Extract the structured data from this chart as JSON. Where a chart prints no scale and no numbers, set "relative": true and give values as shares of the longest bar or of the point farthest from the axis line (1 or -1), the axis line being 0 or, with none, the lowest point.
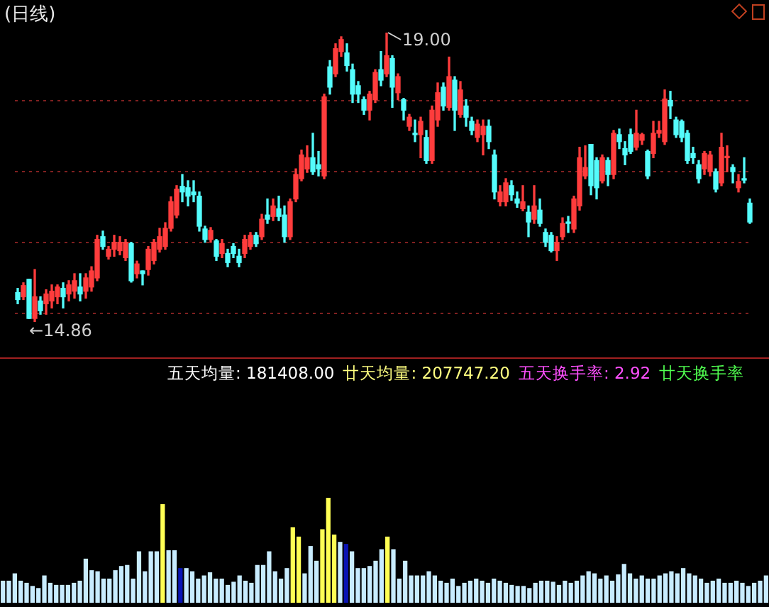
{
  "chart_data": [
    {
      "type": "candlestick",
      "title": "(日线)",
      "grid": "y",
      "tick_labels": false,
      "yticks": [
        {
          "value": 14.98,
          "label": null
        },
        {
          "value": 16.0,
          "label": null
        },
        {
          "value": 17.01,
          "label": null
        },
        {
          "value": 18.03,
          "label": null
        }
      ],
      "categories": [
        null,
        null,
        null,
        null,
        null,
        null,
        null,
        null,
        null,
        null,
        null,
        null,
        null,
        null,
        null,
        null,
        null,
        null,
        null,
        null,
        null,
        null,
        null,
        null,
        null,
        null,
        null,
        null,
        null,
        null,
        null,
        null,
        null,
        null,
        null,
        null,
        null,
        null,
        null,
        null,
        null,
        null,
        null,
        null,
        null,
        null,
        null,
        null,
        null,
        null,
        null,
        null,
        null,
        null,
        null,
        null,
        null,
        null,
        null,
        null,
        null,
        null,
        null,
        null,
        null,
        null,
        null,
        null,
        null,
        null,
        null,
        null,
        null,
        null,
        null,
        null,
        null,
        null,
        null,
        null,
        null,
        null,
        null,
        null,
        null,
        null,
        null,
        null,
        null,
        null,
        null,
        null,
        null,
        null,
        null,
        null,
        null,
        null,
        null,
        null,
        null,
        null,
        null,
        null,
        null,
        null,
        null,
        null,
        null,
        null,
        null,
        null,
        null,
        null,
        null,
        null,
        null,
        null,
        null,
        null,
        null,
        null,
        null,
        null,
        null,
        null,
        null,
        null,
        null,
        null
      ],
      "ohlc": [
        [
          15.28,
          15.34,
          15.12,
          15.18
        ],
        [
          15.22,
          15.42,
          15.18,
          15.38
        ],
        [
          15.47,
          15.47,
          14.91,
          14.91
        ],
        [
          14.91,
          15.61,
          14.86,
          15.22
        ],
        [
          15.16,
          15.22,
          14.97,
          15.02
        ],
        [
          15.12,
          15.32,
          14.97,
          15.26
        ],
        [
          15.16,
          15.39,
          15.06,
          15.3
        ],
        [
          15.22,
          15.39,
          15.12,
          15.36
        ],
        [
          15.34,
          15.42,
          15.06,
          15.22
        ],
        [
          15.26,
          15.45,
          15.16,
          15.39
        ],
        [
          15.3,
          15.55,
          15.2,
          15.45
        ],
        [
          15.36,
          15.55,
          15.16,
          15.26
        ],
        [
          15.3,
          15.55,
          15.2,
          15.49
        ],
        [
          15.36,
          15.65,
          15.3,
          15.59
        ],
        [
          15.49,
          16.1,
          15.45,
          16.04
        ],
        [
          16.08,
          16.16,
          15.9,
          15.94
        ],
        [
          15.8,
          15.94,
          15.76,
          15.9
        ],
        [
          15.9,
          16.1,
          15.8,
          16.0
        ],
        [
          15.88,
          16.08,
          15.82,
          16.0
        ],
        [
          15.78,
          16.04,
          15.74,
          16.0
        ],
        [
          15.98,
          16.0,
          15.43,
          15.45
        ],
        [
          15.55,
          15.73,
          15.49,
          15.69
        ],
        [
          15.59,
          15.59,
          15.39,
          15.55
        ],
        [
          15.61,
          15.94,
          15.53,
          15.9
        ],
        [
          15.74,
          16.04,
          15.69,
          16.0
        ],
        [
          15.9,
          16.2,
          15.86,
          16.08
        ],
        [
          15.94,
          16.28,
          15.9,
          16.2
        ],
        [
          16.2,
          16.65,
          16.16,
          16.58
        ],
        [
          16.39,
          16.81,
          16.35,
          16.76
        ],
        [
          16.8,
          16.97,
          16.58,
          16.72
        ],
        [
          16.78,
          16.88,
          16.52,
          16.66
        ],
        [
          16.72,
          16.88,
          16.58,
          16.68
        ],
        [
          16.66,
          16.72,
          16.16,
          16.23
        ],
        [
          16.19,
          16.23,
          16.0,
          16.04
        ],
        [
          16.04,
          16.21,
          16.0,
          16.17
        ],
        [
          16.02,
          16.04,
          15.74,
          15.8
        ],
        [
          15.84,
          16.04,
          15.78,
          15.98
        ],
        [
          15.84,
          15.9,
          15.65,
          15.71
        ],
        [
          15.94,
          15.98,
          15.78,
          15.84
        ],
        [
          15.8,
          15.9,
          15.65,
          15.71
        ],
        [
          15.84,
          16.1,
          15.78,
          16.04
        ],
        [
          15.94,
          16.14,
          15.9,
          16.1
        ],
        [
          16.1,
          16.14,
          15.94,
          15.98
        ],
        [
          16.08,
          16.4,
          16.04,
          16.33
        ],
        [
          16.39,
          16.62,
          16.27,
          16.33
        ],
        [
          16.37,
          16.62,
          16.31,
          16.52
        ],
        [
          16.48,
          16.66,
          16.31,
          16.37
        ],
        [
          16.39,
          16.52,
          16.0,
          16.08
        ],
        [
          16.08,
          16.62,
          16.04,
          16.58
        ],
        [
          16.62,
          17.05,
          16.58,
          16.97
        ],
        [
          16.91,
          17.32,
          16.88,
          17.25
        ],
        [
          17.05,
          17.38,
          17.0,
          17.21
        ],
        [
          17.21,
          17.56,
          16.97,
          17.01
        ],
        [
          17.11,
          17.3,
          16.95,
          17.05
        ],
        [
          16.95,
          18.12,
          16.91,
          18.08
        ],
        [
          18.51,
          18.6,
          18.12,
          18.22
        ],
        [
          18.41,
          18.84,
          18.37,
          18.77
        ],
        [
          18.73,
          18.94,
          18.66,
          18.9
        ],
        [
          18.71,
          18.84,
          18.45,
          18.53
        ],
        [
          18.47,
          18.55,
          18.0,
          18.12
        ],
        [
          18.24,
          18.3,
          18.0,
          18.12
        ],
        [
          18.04,
          18.08,
          17.83,
          17.89
        ],
        [
          17.89,
          18.16,
          17.75,
          18.12
        ],
        [
          18.04,
          18.47,
          18.0,
          18.43
        ],
        [
          18.47,
          18.73,
          18.24,
          18.32
        ],
        [
          18.41,
          19.0,
          18.37,
          18.67
        ],
        [
          18.63,
          18.67,
          17.93,
          18.22
        ],
        [
          18.14,
          18.41,
          18.04,
          18.37
        ],
        [
          18.04,
          18.06,
          17.75,
          17.89
        ],
        [
          17.66,
          17.83,
          17.6,
          17.79
        ],
        [
          17.56,
          17.75,
          17.44,
          17.54
        ],
        [
          17.54,
          17.79,
          17.21,
          17.73
        ],
        [
          17.5,
          17.6,
          17.13,
          17.17
        ],
        [
          17.17,
          17.95,
          17.13,
          17.89
        ],
        [
          17.75,
          18.28,
          17.66,
          18.14
        ],
        [
          18.22,
          18.28,
          17.89,
          17.95
        ],
        [
          17.93,
          18.65,
          17.89,
          18.37
        ],
        [
          18.32,
          18.37,
          17.6,
          17.89
        ],
        [
          17.83,
          18.3,
          17.79,
          18.18
        ],
        [
          17.95,
          18.04,
          17.66,
          17.79
        ],
        [
          17.73,
          17.79,
          17.54,
          17.6
        ],
        [
          17.5,
          17.75,
          17.44,
          17.69
        ],
        [
          17.54,
          17.75,
          17.25,
          17.66
        ],
        [
          17.66,
          17.75,
          17.34,
          17.44
        ],
        [
          17.25,
          17.32,
          16.62,
          16.72
        ],
        [
          16.58,
          16.81,
          16.52,
          16.72
        ],
        [
          16.58,
          16.91,
          16.52,
          16.85
        ],
        [
          16.81,
          16.88,
          16.6,
          16.68
        ],
        [
          16.62,
          16.72,
          16.5,
          16.56
        ],
        [
          16.48,
          16.81,
          16.45,
          16.58
        ],
        [
          16.43,
          16.52,
          16.08,
          16.29
        ],
        [
          16.33,
          16.81,
          16.27,
          16.52
        ],
        [
          16.46,
          16.62,
          16.23,
          16.27
        ],
        [
          16.14,
          16.19,
          15.94,
          16.0
        ],
        [
          16.1,
          16.14,
          15.86,
          15.88
        ],
        [
          15.88,
          16.08,
          15.74,
          16.0
        ],
        [
          16.08,
          16.35,
          16.04,
          16.27
        ],
        [
          16.29,
          16.37,
          16.14,
          16.27
        ],
        [
          16.19,
          16.66,
          16.14,
          16.62
        ],
        [
          16.52,
          17.36,
          16.46,
          17.21
        ],
        [
          16.95,
          17.38,
          16.91,
          17.07
        ],
        [
          17.4,
          17.4,
          16.68,
          16.81
        ],
        [
          17.17,
          17.21,
          16.62,
          16.78
        ],
        [
          16.88,
          17.25,
          16.85,
          17.21
        ],
        [
          17.17,
          17.21,
          16.81,
          16.97
        ],
        [
          16.97,
          17.6,
          16.91,
          17.56
        ],
        [
          17.54,
          17.62,
          17.34,
          17.44
        ],
        [
          17.34,
          17.44,
          17.11,
          17.25
        ],
        [
          17.54,
          17.62,
          17.27,
          17.3
        ],
        [
          17.36,
          17.89,
          17.32,
          17.56
        ],
        [
          17.46,
          17.56,
          17.4,
          17.54
        ],
        [
          17.3,
          17.32,
          16.91,
          16.95
        ],
        [
          17.27,
          17.73,
          17.21,
          17.56
        ],
        [
          17.56,
          17.73,
          17.5,
          17.6
        ],
        [
          17.44,
          18.18,
          17.4,
          18.05
        ],
        [
          18.03,
          18.16,
          17.77,
          17.95
        ],
        [
          17.75,
          17.79,
          17.5,
          17.54
        ],
        [
          17.73,
          17.75,
          17.44,
          17.5
        ],
        [
          17.56,
          17.6,
          17.13,
          17.17
        ],
        [
          17.27,
          17.36,
          17.13,
          17.21
        ],
        [
          17.11,
          17.17,
          16.85,
          16.91
        ],
        [
          17.05,
          17.3,
          16.97,
          17.27
        ],
        [
          17.01,
          17.3,
          16.95,
          17.25
        ],
        [
          17.01,
          17.05,
          16.72,
          16.76
        ],
        [
          16.85,
          17.56,
          16.81,
          17.36
        ],
        [
          17.21,
          17.38,
          17.01,
          17.21
        ],
        [
          17.07,
          17.11,
          16.85,
          17.01
        ],
        [
          16.78,
          16.97,
          16.72,
          16.87
        ],
        [
          16.91,
          17.21,
          16.85,
          16.89
        ],
        [
          16.56,
          16.62,
          16.27,
          16.29
        ]
      ],
      "annotations": [
        "19.00",
        "←14.86"
      ]
    },
    {
      "type": "bar",
      "relative": true,
      "categories": [
        null,
        null,
        null,
        null,
        null,
        null,
        null,
        null,
        null,
        null,
        null,
        null,
        null,
        null,
        null,
        null,
        null,
        null,
        null,
        null,
        null,
        null,
        null,
        null,
        null,
        null,
        null,
        null,
        null,
        null,
        null,
        null,
        null,
        null,
        null,
        null,
        null,
        null,
        null,
        null,
        null,
        null,
        null,
        null,
        null,
        null,
        null,
        null,
        null,
        null,
        null,
        null,
        null,
        null,
        null,
        null,
        null,
        null,
        null,
        null,
        null,
        null,
        null,
        null,
        null,
        null,
        null,
        null,
        null,
        null,
        null,
        null,
        null,
        null,
        null,
        null,
        null,
        null,
        null,
        null,
        null,
        null,
        null,
        null,
        null,
        null,
        null,
        null,
        null,
        null,
        null,
        null,
        null,
        null,
        null,
        null,
        null,
        null,
        null,
        null,
        null,
        null,
        null,
        null,
        null,
        null,
        null,
        null,
        null,
        null,
        null,
        null,
        null,
        null,
        null,
        null,
        null,
        null,
        null,
        null,
        null,
        null,
        null,
        null,
        null,
        null,
        null,
        null,
        null,
        null
      ],
      "values": [
        0.21,
        0.21,
        0.28,
        0.21,
        0.19,
        0.16,
        0.14,
        0.26,
        0.19,
        0.17,
        0.17,
        0.17,
        0.19,
        0.21,
        0.42,
        0.31,
        0.3,
        0.23,
        0.23,
        0.31,
        0.35,
        0.36,
        0.23,
        0.49,
        0.3,
        0.49,
        0.49,
        0.94,
        0.5,
        0.5,
        0.33,
        0.33,
        0.3,
        0.23,
        0.26,
        0.29,
        0.23,
        0.23,
        0.17,
        0.2,
        0.26,
        0.21,
        0.19,
        0.36,
        0.36,
        0.49,
        0.3,
        0.23,
        0.33,
        0.72,
        0.63,
        0.28,
        0.54,
        0.4,
        0.7,
        1.0,
        0.65,
        0.58,
        0.56,
        0.49,
        0.33,
        0.33,
        0.35,
        0.4,
        0.51,
        0.63,
        0.51,
        0.23,
        0.4,
        0.26,
        0.26,
        0.26,
        0.3,
        0.26,
        0.21,
        0.19,
        0.23,
        0.16,
        0.19,
        0.21,
        0.23,
        0.21,
        0.19,
        0.23,
        0.21,
        0.19,
        0.17,
        0.16,
        0.16,
        0.14,
        0.19,
        0.21,
        0.21,
        0.2,
        0.17,
        0.21,
        0.19,
        0.21,
        0.26,
        0.3,
        0.28,
        0.23,
        0.26,
        0.21,
        0.27,
        0.37,
        0.28,
        0.23,
        0.26,
        0.23,
        0.23,
        0.26,
        0.28,
        0.3,
        0.28,
        0.33,
        0.28,
        0.26,
        0.23,
        0.19,
        0.21,
        0.23,
        0.19,
        0.19,
        0.21,
        0.19,
        0.16,
        0.19,
        0.21,
        0.26
      ],
      "colors": [
        "#c8ecff",
        "#c8ecff",
        "#c8ecff",
        "#c8ecff",
        "#c8ecff",
        "#c8ecff",
        "#c8ecff",
        "#c8ecff",
        "#c8ecff",
        "#c8ecff",
        "#c8ecff",
        "#c8ecff",
        "#c8ecff",
        "#c8ecff",
        "#c8ecff",
        "#c8ecff",
        "#c8ecff",
        "#c8ecff",
        "#c8ecff",
        "#c8ecff",
        "#c8ecff",
        "#c8ecff",
        "#c8ecff",
        "#c8ecff",
        "#c8ecff",
        "#c8ecff",
        "#c8ecff",
        "#ffff54",
        "#c8ecff",
        "#c8ecff",
        "#0a14b4",
        "#c8ecff",
        "#c8ecff",
        "#c8ecff",
        "#c8ecff",
        "#c8ecff",
        "#c8ecff",
        "#c8ecff",
        "#c8ecff",
        "#c8ecff",
        "#c8ecff",
        "#c8ecff",
        "#c8ecff",
        "#c8ecff",
        "#c8ecff",
        "#c8ecff",
        "#c8ecff",
        "#c8ecff",
        "#c8ecff",
        "#ffff54",
        "#ffff54",
        "#c8ecff",
        "#c8ecff",
        "#c8ecff",
        "#ffff54",
        "#ffff54",
        "#ffff54",
        "#c8ecff",
        "#0a14b4",
        "#c8ecff",
        "#c8ecff",
        "#c8ecff",
        "#c8ecff",
        "#c8ecff",
        "#c8ecff",
        "#ffff54",
        "#c8ecff",
        "#c8ecff",
        "#c8ecff",
        "#c8ecff",
        "#c8ecff",
        "#c8ecff",
        "#c8ecff",
        "#c8ecff",
        "#c8ecff",
        "#c8ecff",
        "#c8ecff",
        "#c8ecff",
        "#c8ecff",
        "#c8ecff",
        "#c8ecff",
        "#c8ecff",
        "#c8ecff",
        "#c8ecff",
        "#c8ecff",
        "#c8ecff",
        "#c8ecff",
        "#c8ecff",
        "#c8ecff",
        "#c8ecff",
        "#c8ecff",
        "#c8ecff",
        "#c8ecff",
        "#c8ecff",
        "#c8ecff",
        "#c8ecff",
        "#c8ecff",
        "#c8ecff",
        "#c8ecff",
        "#c8ecff",
        "#c8ecff",
        "#c8ecff",
        "#c8ecff",
        "#c8ecff",
        "#c8ecff",
        "#c8ecff",
        "#c8ecff",
        "#c8ecff",
        "#c8ecff",
        "#c8ecff",
        "#c8ecff",
        "#c8ecff",
        "#c8ecff",
        "#c8ecff",
        "#c8ecff",
        "#c8ecff",
        "#c8ecff",
        "#c8ecff",
        "#c8ecff",
        "#c8ecff",
        "#c8ecff",
        "#c8ecff",
        "#c8ecff",
        "#c8ecff",
        "#c8ecff",
        "#c8ecff",
        "#c8ecff",
        "#c8ecff",
        "#c8ecff",
        "#c8ecff"
      ],
      "annotations": [
        "五天均量: 181408.00",
        "廿天均量: 207747.20",
        "五天换手率: 2.92",
        "廿天换手率"
      ]
    }
  ]
}
